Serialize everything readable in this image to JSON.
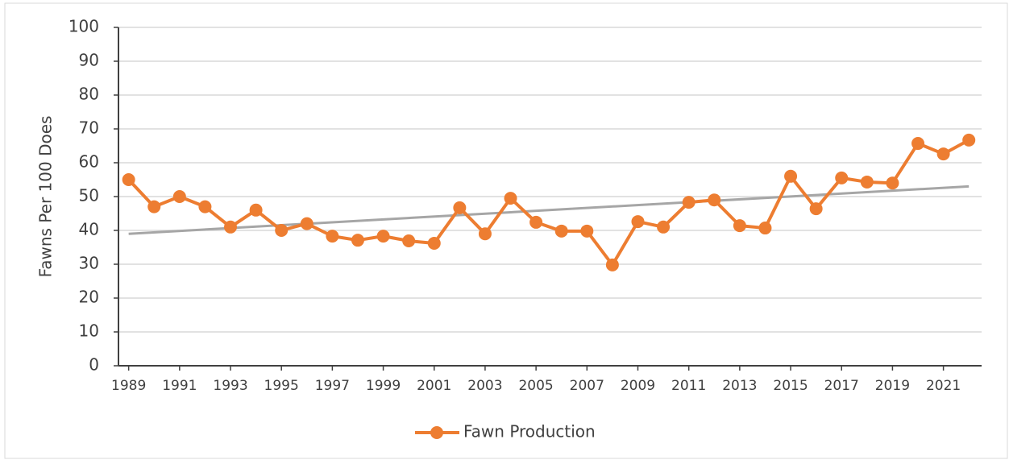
{
  "chart_data": {
    "type": "line",
    "y_label": "Fawns Per 100 Does",
    "x": [
      1989,
      1990,
      1991,
      1992,
      1993,
      1994,
      1995,
      1996,
      1997,
      1998,
      1999,
      2000,
      2001,
      2002,
      2003,
      2004,
      2005,
      2006,
      2007,
      2008,
      2009,
      2010,
      2011,
      2012,
      2013,
      2014,
      2015,
      2016,
      2017,
      2018,
      2019,
      2020,
      2021,
      2022
    ],
    "series": [
      {
        "name": "Fawn Production",
        "color": "#ed7d31",
        "values": [
          55,
          47,
          50,
          47,
          41,
          46,
          40,
          42,
          38.3,
          37.1,
          38.3,
          36.9,
          36.2,
          46.7,
          39,
          49.5,
          42.4,
          39.8,
          39.8,
          29.8,
          42.6,
          41,
          48.3,
          49,
          41.4,
          40.7,
          56,
          46.4,
          55.5,
          54.3,
          54,
          65.7,
          62.6,
          66.7
        ]
      }
    ],
    "trendline": {
      "color": "#a6a6a6",
      "x": [
        1989,
        2022
      ],
      "values": [
        39,
        53
      ]
    },
    "xlim": [
      1988.6,
      2022.5
    ],
    "xticks": [
      1989,
      1991,
      1993,
      1995,
      1997,
      1999,
      2001,
      2003,
      2005,
      2007,
      2009,
      2011,
      2013,
      2015,
      2017,
      2019,
      2021
    ],
    "ylim": [
      0,
      100
    ],
    "yticks": [
      0,
      10,
      20,
      30,
      40,
      50,
      60,
      70,
      80,
      90,
      100
    ],
    "grid": true,
    "legend": "bottom"
  }
}
